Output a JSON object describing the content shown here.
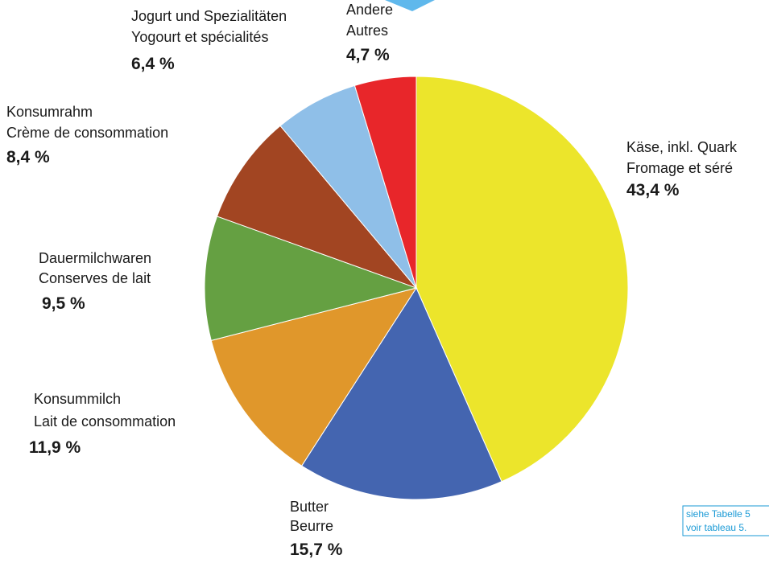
{
  "chart_data": {
    "type": "pie",
    "categories": [
      [
        "Käse, inkl. Quark",
        "Fromage et séré"
      ],
      [
        "Butter",
        "Beurre"
      ],
      [
        "Konsummilch",
        "Lait de consommation"
      ],
      [
        "Dauermilchwaren",
        "Conserves de lait"
      ],
      [
        "Konsumrahm",
        "Crème de consommation"
      ],
      [
        "Jogurt und Spezialitäten",
        "Yogourt et spécialités"
      ],
      [
        "Andere",
        "Autres"
      ]
    ],
    "values": [
      43.4,
      15.7,
      11.9,
      9.5,
      8.4,
      6.4,
      4.7
    ],
    "value_labels": [
      "43,4 %",
      "15,7 %",
      "11,9 %",
      "9,5 %",
      "8,4 %",
      "6,4 %",
      "4,7 %"
    ],
    "colors": [
      "#ece52b",
      "#4465b0",
      "#e0972b",
      "#65a042",
      "#a24522",
      "#8fbfe8",
      "#e8262a"
    ],
    "note": [
      "siehe Tabelle 5",
      "voir tableau 5."
    ]
  }
}
